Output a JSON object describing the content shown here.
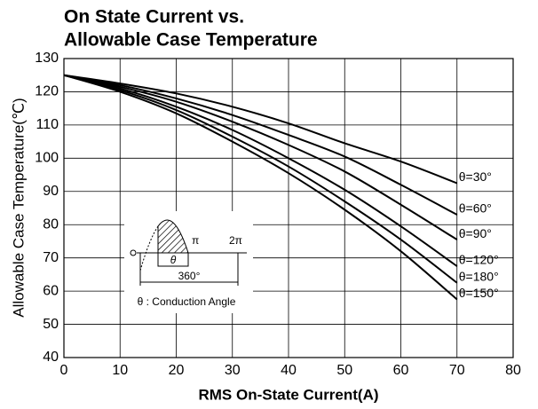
{
  "chart_data": {
    "type": "line",
    "title": [
      "On State Current vs.",
      "Allowable Case Temperature"
    ],
    "x_label": "RMS On-State Current(A)",
    "y_label": "Allowable Case Temperature(℃)",
    "x": [
      0,
      10,
      20,
      30,
      40,
      50,
      60,
      70
    ],
    "series": [
      {
        "name": "θ=30°",
        "color": "#000000",
        "values": [
          125,
          122.5,
          119.5,
          115.5,
          110.5,
          104.5,
          99,
          92.5
        ]
      },
      {
        "name": "θ=60°",
        "color": "#000000",
        "values": [
          125,
          122,
          118,
          113,
          107,
          100.5,
          92,
          83
        ]
      },
      {
        "name": "θ=90°",
        "color": "#000000",
        "values": [
          125,
          121.5,
          117,
          111,
          104,
          96,
          86,
          75.5
        ]
      },
      {
        "name": "θ=120°",
        "color": "#000000",
        "values": [
          125,
          121,
          115.5,
          108.5,
          100,
          90.5,
          79.5,
          67.5
        ]
      },
      {
        "name": "θ=180°",
        "color": "#000000",
        "values": [
          125,
          120.5,
          114.5,
          106.5,
          97.5,
          87,
          75.5,
          62.5
        ]
      },
      {
        "name": "θ=150°",
        "color": "#000000",
        "values": [
          125,
          120,
          113.5,
          105,
          95.5,
          84.5,
          72,
          57.5
        ]
      }
    ],
    "xlim": [
      0,
      80
    ],
    "xticks": [
      0,
      10,
      20,
      30,
      40,
      50,
      60,
      70,
      80
    ],
    "ylim": [
      40,
      130
    ],
    "yticks": [
      40,
      50,
      60,
      70,
      80,
      90,
      100,
      110,
      120,
      130
    ],
    "grid": true,
    "inset": {
      "pi": "π",
      "two_pi": "2π",
      "theta": "θ",
      "period": "360°",
      "caption": "θ : Conduction Angle"
    }
  }
}
